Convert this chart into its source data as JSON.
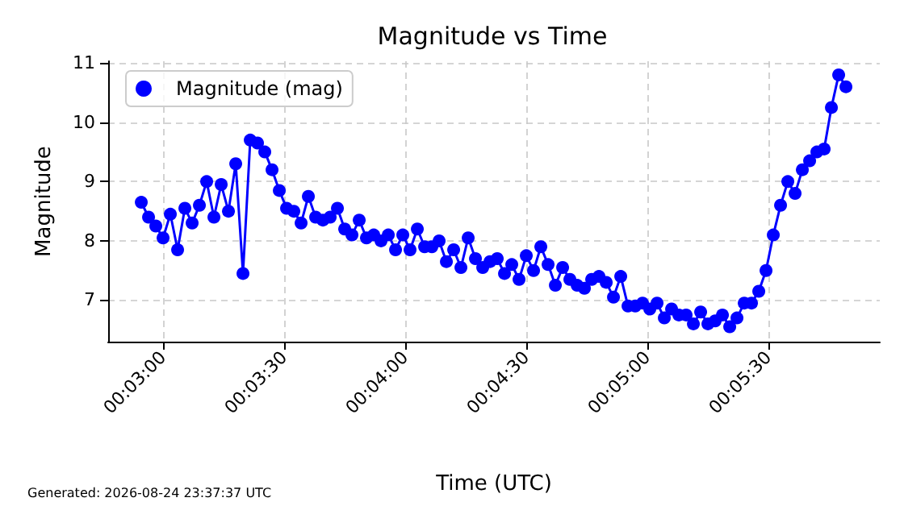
{
  "chart_data": {
    "type": "line",
    "title": "Magnitude vs Time",
    "xlabel": "Time (UTC)",
    "ylabel": "Magnitude",
    "annotations": [
      "Generated: 2026-08-24 23:37:37 UTC"
    ],
    "xlim": [
      0.04622,
      0.09933
    ],
    "ylim": [
      6.3,
      11.03
    ],
    "xticks": [
      {
        "value": 0.05,
        "label": "00:03:00"
      },
      {
        "value": 0.058333,
        "label": "00:03:30"
      },
      {
        "value": 0.066667,
        "label": "00:04:00"
      },
      {
        "value": 0.075,
        "label": "00:04:30"
      },
      {
        "value": 0.083333,
        "label": "00:05:00"
      },
      {
        "value": 0.091667,
        "label": "00:05:30"
      }
    ],
    "yticks": [
      7,
      8,
      9,
      10,
      11
    ],
    "grid": true,
    "legend": "top left",
    "marker": "circle",
    "line_style": "solid",
    "series": [
      {
        "name": "Magnitude (mag)",
        "color": "#0000ff",
        "x": [
          0.0485,
          0.049,
          0.0495,
          0.05,
          0.0505,
          0.051,
          0.0515,
          0.052,
          0.0525,
          0.053,
          0.0535,
          0.054,
          0.0545,
          0.055,
          0.0555,
          0.056,
          0.0565,
          0.057,
          0.0575,
          0.058,
          0.0585,
          0.059,
          0.0595,
          0.06,
          0.0605,
          0.061,
          0.0615,
          0.062,
          0.0625,
          0.063,
          0.0635,
          0.064,
          0.0645,
          0.065,
          0.0655,
          0.066,
          0.0665,
          0.067,
          0.0675,
          0.068,
          0.0685,
          0.069,
          0.0695,
          0.07,
          0.0705,
          0.071,
          0.0715,
          0.072,
          0.0725,
          0.073,
          0.0735,
          0.074,
          0.0745,
          0.075,
          0.0755,
          0.076,
          0.0765,
          0.077,
          0.0775,
          0.078,
          0.0785,
          0.079,
          0.0795,
          0.08,
          0.0805,
          0.081,
          0.0815,
          0.082,
          0.0825,
          0.083,
          0.0835,
          0.084,
          0.0845,
          0.085,
          0.0855,
          0.086,
          0.0865,
          0.087,
          0.0875,
          0.088,
          0.0885,
          0.089,
          0.0895,
          0.09,
          0.0905,
          0.091,
          0.0915,
          0.092,
          0.0925,
          0.093,
          0.0935,
          0.094,
          0.0945,
          0.095,
          0.0955,
          0.096,
          0.0965,
          0.097
        ],
        "values": [
          8.65,
          8.4,
          8.25,
          8.05,
          8.45,
          7.85,
          8.55,
          8.3,
          8.6,
          9.0,
          8.4,
          8.95,
          8.5,
          9.3,
          7.45,
          9.7,
          9.65,
          9.5,
          9.2,
          8.85,
          8.55,
          8.5,
          8.3,
          8.75,
          8.4,
          8.35,
          8.4,
          8.55,
          8.2,
          8.1,
          8.35,
          8.05,
          8.1,
          8.0,
          8.1,
          7.85,
          8.1,
          7.85,
          8.2,
          7.9,
          7.9,
          8.0,
          7.65,
          7.85,
          7.55,
          8.05,
          7.7,
          7.55,
          7.65,
          7.7,
          7.45,
          7.6,
          7.35,
          7.75,
          7.5,
          7.9,
          7.6,
          7.25,
          7.55,
          7.35,
          7.25,
          7.2,
          7.35,
          7.4,
          7.3,
          7.05,
          7.4,
          6.9,
          6.9,
          6.95,
          6.85,
          6.95,
          6.7,
          6.85,
          6.75,
          6.75,
          6.6,
          6.8,
          6.6,
          6.65,
          6.75,
          6.55,
          6.7,
          6.95,
          6.95,
          7.15,
          7.5,
          8.1,
          8.6,
          9.0,
          8.8,
          9.2,
          9.35,
          9.5,
          9.55,
          10.25,
          10.8,
          10.6
        ]
      }
    ]
  }
}
